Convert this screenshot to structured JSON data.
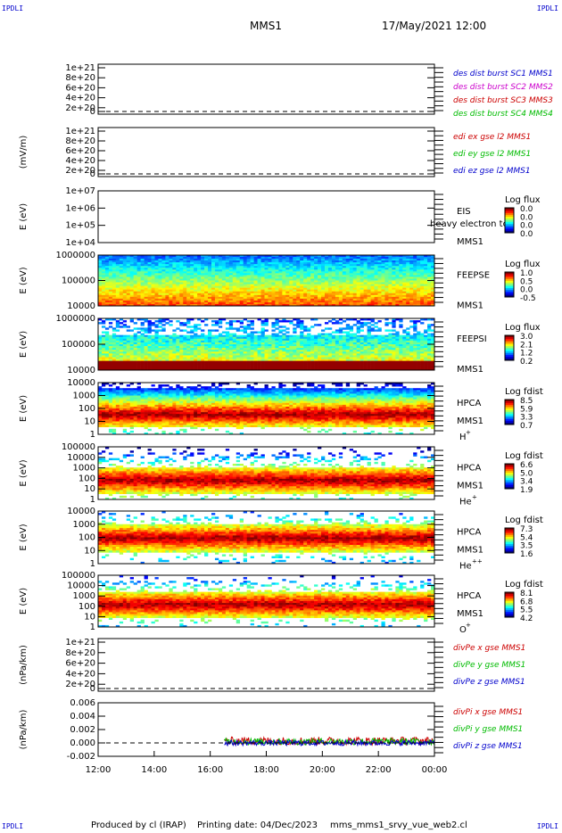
{
  "header": {
    "corner_label": "IPDLI",
    "spacecraft": "MMS1",
    "datetime": "17/May/2021 12:00"
  },
  "footer": {
    "producer": "Produced by cl (IRAP)",
    "printing_date": "Printing date: 04/Dec/2023",
    "filename": "mms_mms1_srvy_vue_web2.cl"
  },
  "x_axis": {
    "ticks": [
      "12:00",
      "14:00",
      "16:00",
      "18:00",
      "20:00",
      "22:00",
      "00:00"
    ]
  },
  "chart_data": [
    {
      "type": "line",
      "ylabel": "",
      "yticks": [
        "1e+21",
        "8e+20",
        "6e+20",
        "4e+20",
        "2e+20",
        "0"
      ],
      "legend": [
        {
          "text": "des dist burst SC1 MMS1",
          "color": "#0000cc"
        },
        {
          "text": "des dist burst SC2 MMS2",
          "color": "#cc00cc"
        },
        {
          "text": "des dist burst SC3 MMS3",
          "color": "#cc0000"
        },
        {
          "text": "des dist burst SC4 MMS4",
          "color": "#00bb00"
        }
      ]
    },
    {
      "type": "line",
      "ylabel": "(mV/m)",
      "yticks": [
        "1e+21",
        "8e+20",
        "6e+20",
        "4e+20",
        "2e+20",
        "0"
      ],
      "legend": [
        {
          "text": "edi ex gse l2 MMS1",
          "color": "#cc0000"
        },
        {
          "text": "edi ey gse l2 MMS1",
          "color": "#00bb00"
        },
        {
          "text": "edi ez gse l2 MMS1",
          "color": "#0000cc"
        }
      ]
    },
    {
      "type": "heatmap",
      "ylabel": "E (eV)",
      "yticks": [
        "1e+07",
        "1e+06",
        "1e+05",
        "1e+04"
      ],
      "instrument": "EIS",
      "overlay_text": "heavy electron to",
      "sc": "MMS1",
      "cbar_title": "Log flux",
      "cbar_ticks": [
        "0.0",
        "0.0",
        "0.0",
        "0.0"
      ],
      "coverage": "empty"
    },
    {
      "type": "heatmap",
      "ylabel": "E (eV)",
      "yticks": [
        "1000000",
        "100000",
        "10000"
      ],
      "instrument": "FEEPSE",
      "sc": "MMS1",
      "cbar_title": "Log flux",
      "cbar_ticks": [
        "1.0",
        "0.5",
        "0.0",
        "-0.5"
      ],
      "coverage": "full",
      "time_range": [
        0,
        12
      ]
    },
    {
      "type": "heatmap",
      "ylabel": "E (eV)",
      "yticks": [
        "1000000",
        "100000",
        "10000"
      ],
      "instrument": "FEEPSI",
      "sc": "MMS1",
      "cbar_title": "Log flux",
      "cbar_ticks": [
        "3.0",
        "2.1",
        "1.2",
        "0.2"
      ],
      "coverage": "full",
      "time_range": [
        0,
        12
      ]
    },
    {
      "type": "heatmap",
      "ylabel": "E (eV)",
      "yticks": [
        "10000",
        "1000",
        "100",
        "10",
        "1"
      ],
      "instrument": "HPCA",
      "sc": "MMS1",
      "species": "H",
      "species_sup": "+",
      "cbar_title": "Log fdist",
      "cbar_ticks": [
        "8.5",
        "5.9",
        "3.3",
        "0.7"
      ],
      "coverage": "full",
      "time_range": [
        0,
        12
      ]
    },
    {
      "type": "heatmap",
      "ylabel": "E (eV)",
      "yticks": [
        "100000",
        "10000",
        "1000",
        "100",
        "10",
        "1"
      ],
      "instrument": "HPCA",
      "sc": "MMS1",
      "species": "He",
      "species_sup": "+",
      "cbar_title": "Log fdist",
      "cbar_ticks": [
        "6.6",
        "5.0",
        "3.4",
        "1.9"
      ],
      "coverage": "full",
      "time_range": [
        0,
        12
      ]
    },
    {
      "type": "heatmap",
      "ylabel": "E (eV)",
      "yticks": [
        "10000",
        "1000",
        "100",
        "10",
        "1"
      ],
      "instrument": "HPCA",
      "sc": "MMS1",
      "species": "He",
      "species_sup": "++",
      "cbar_title": "Log fdist",
      "cbar_ticks": [
        "7.3",
        "5.4",
        "3.5",
        "1.6"
      ],
      "coverage": "full",
      "time_range": [
        0,
        12
      ]
    },
    {
      "type": "heatmap",
      "ylabel": "E (eV)",
      "yticks": [
        "100000",
        "10000",
        "1000",
        "100",
        "10",
        "1"
      ],
      "instrument": "HPCA",
      "sc": "MMS1",
      "species": "O",
      "species_sup": "+",
      "cbar_title": "Log fdist",
      "cbar_ticks": [
        "8.1",
        "6.8",
        "5.5",
        "4.2"
      ],
      "coverage": "full",
      "time_range": [
        0,
        12
      ]
    },
    {
      "type": "line",
      "ylabel": "(nPa/km)",
      "yticks": [
        "1e+21",
        "8e+20",
        "6e+20",
        "4e+20",
        "2e+20",
        "0"
      ],
      "legend": [
        {
          "text": "divPe x gse MMS1",
          "color": "#cc0000"
        },
        {
          "text": "divPe y gse MMS1",
          "color": "#00bb00"
        },
        {
          "text": "divPe z gse MMS1",
          "color": "#0000cc"
        }
      ]
    },
    {
      "type": "line",
      "ylabel": "(nPa/km)",
      "yticks": [
        "0.006",
        "0.004",
        "0.002",
        "0.000",
        "-0.002"
      ],
      "ylim": [
        -0.002,
        0.006
      ],
      "legend": [
        {
          "text": "divPi x gse MMS1",
          "color": "#cc0000"
        },
        {
          "text": "divPi y gse MMS1",
          "color": "#00bb00"
        },
        {
          "text": "divPi z gse MMS1",
          "color": "#0000cc"
        }
      ],
      "time_range": [
        4.5,
        12
      ],
      "series": [
        {
          "name": "divPi x gse MMS1",
          "color": "#cc0000",
          "mean": 0.0003,
          "spread": 0.0006
        },
        {
          "name": "divPi y gse MMS1",
          "color": "#00bb00",
          "mean": 0.0002,
          "spread": 0.0005
        },
        {
          "name": "divPi z gse MMS1",
          "color": "#0000cc",
          "mean": 0.0,
          "spread": 0.0004
        }
      ]
    }
  ]
}
